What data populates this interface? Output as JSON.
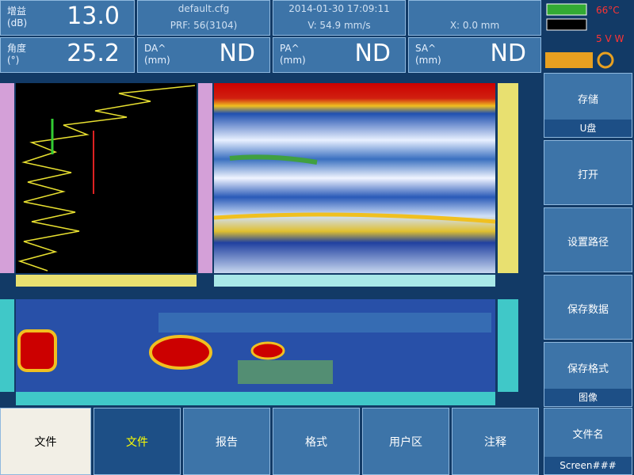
{
  "header": {
    "readings": [
      {
        "label": "增益\n(dB)",
        "value": "13.0"
      },
      {
        "label": "角度\n(°)",
        "value": "25.2"
      }
    ],
    "columns": [
      {
        "info": "default.cfg",
        "sub": "PRF: 56(3104)",
        "label": "DA^\n(mm)",
        "value": "ND"
      },
      {
        "info": "2014-01-30 17:09:11",
        "sub": "V: 54.9 mm/s",
        "label": "PA^\n(mm)",
        "value": "ND"
      },
      {
        "info": "",
        "sub": "X: 0.0 mm",
        "label": "SA^\n(mm)",
        "value": "ND"
      }
    ],
    "status": {
      "temperature": "66°C",
      "power": "5 V W"
    }
  },
  "side_menu": [
    {
      "label": "存储",
      "sub": "U盘"
    },
    {
      "label": "打开"
    },
    {
      "label": "设置路径"
    },
    {
      "label": "保存数据"
    },
    {
      "label": "保存格式",
      "sub": "图像"
    },
    {
      "label": "文件名",
      "sub": "Screen###"
    }
  ],
  "tabs": [
    "文件",
    "文件",
    "报告",
    "格式",
    "用户区",
    "注释"
  ]
}
